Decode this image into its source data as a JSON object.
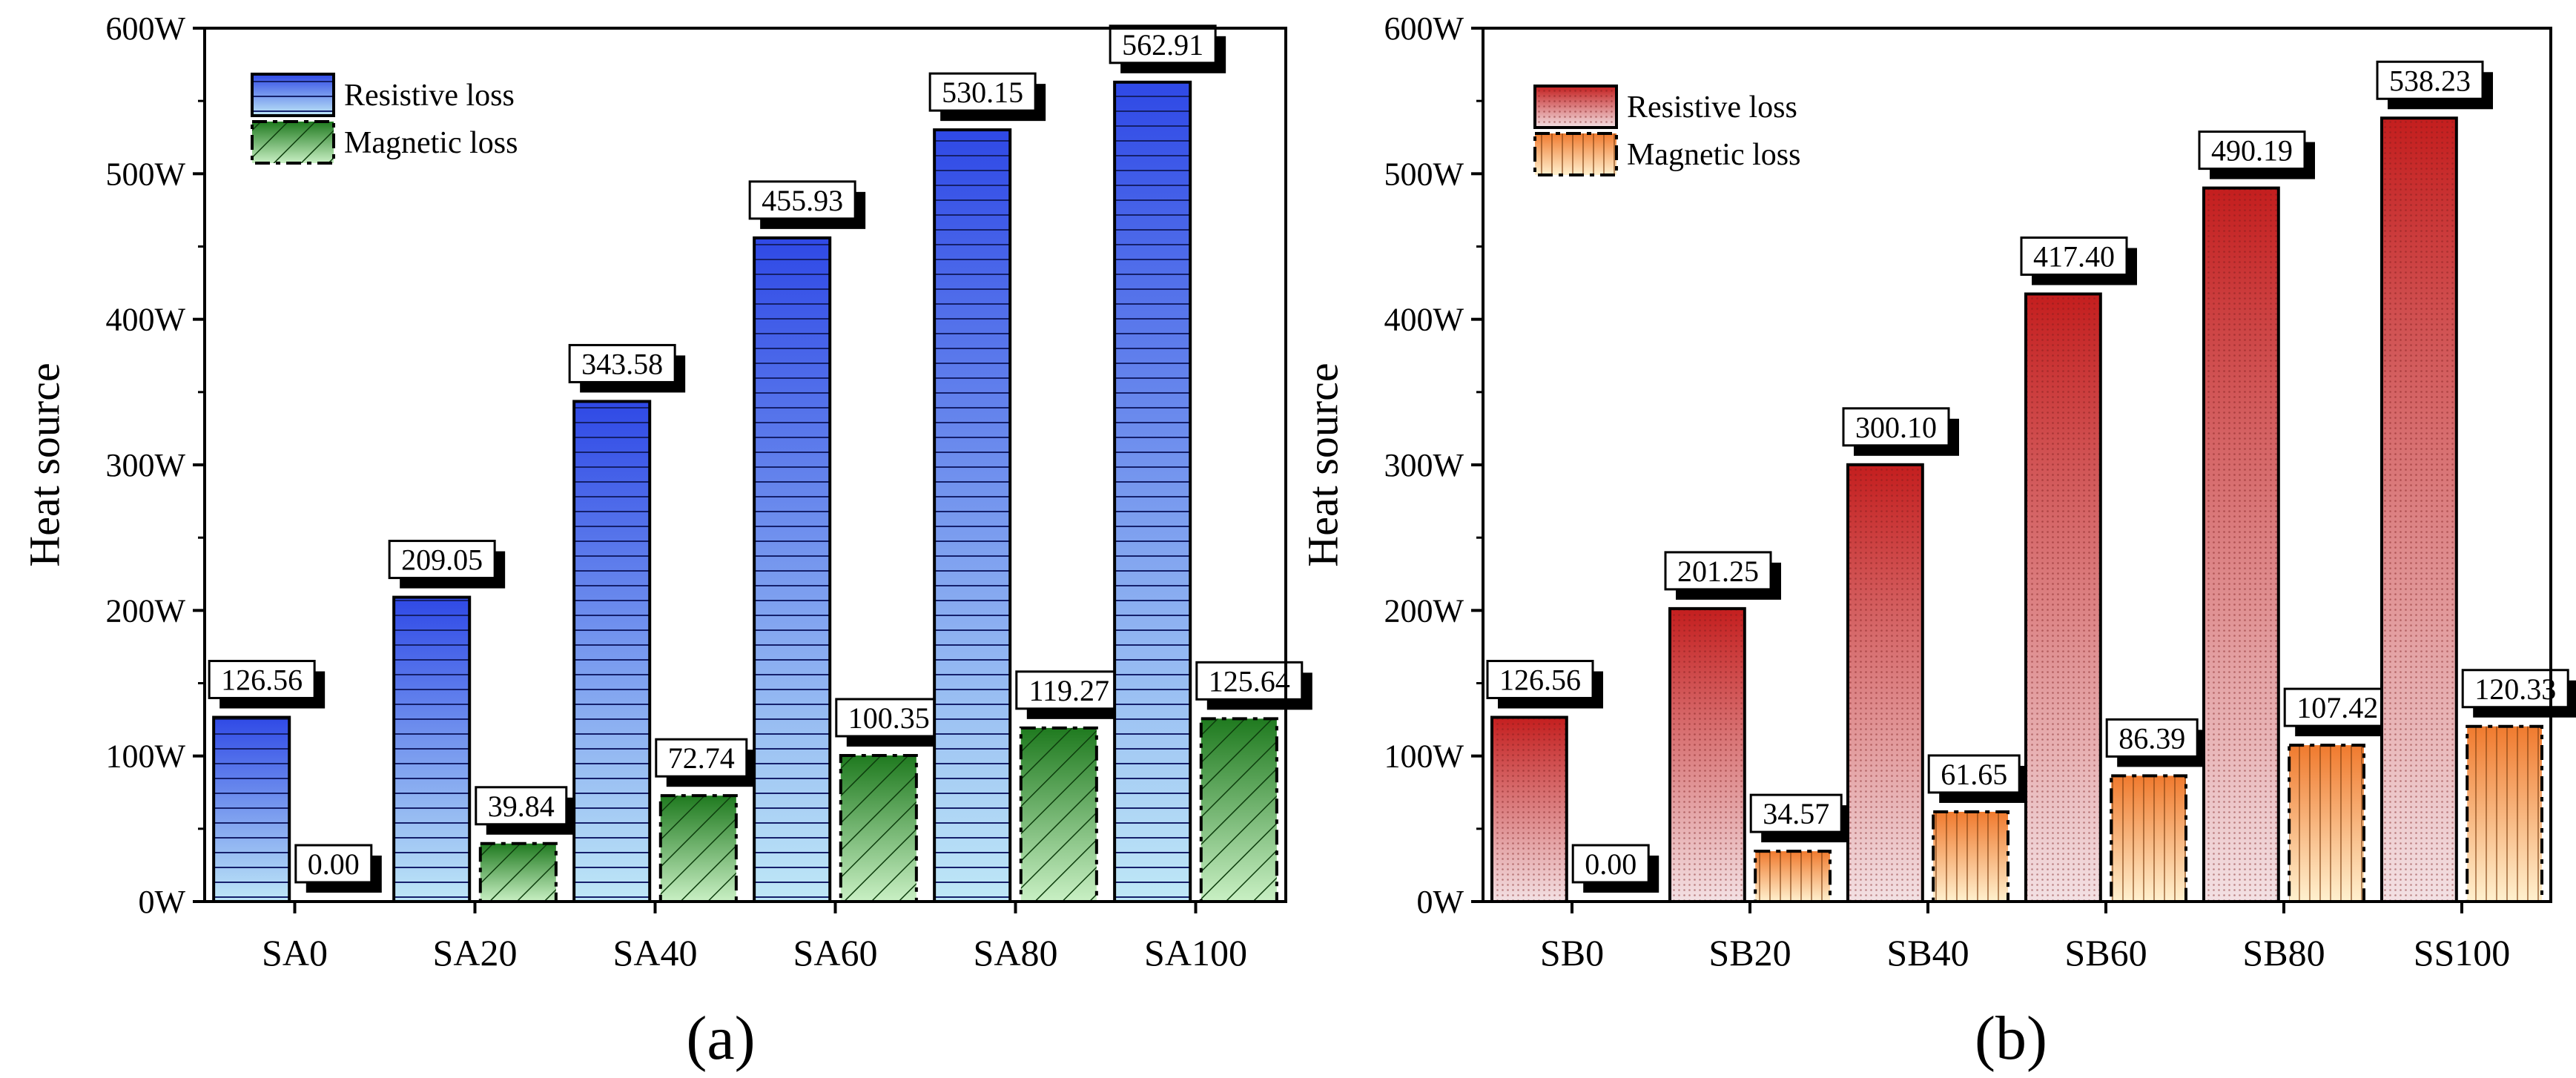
{
  "chart_data": [
    {
      "type": "bar",
      "panel_label": "(a)",
      "categories": [
        "SA0",
        "SA20",
        "SA40",
        "SA60",
        "SA80",
        "SA100"
      ],
      "series": [
        {
          "name": "Resistive loss",
          "values": [
            126.56,
            209.05,
            343.58,
            455.93,
            530.15,
            562.91
          ],
          "color_top": "#2f49e6",
          "color_bottom": "#bfe8f7",
          "pattern": "horizontal-lines"
        },
        {
          "name": "Magnetic loss",
          "values": [
            0.0,
            39.84,
            72.74,
            100.35,
            119.27,
            125.64
          ],
          "color_top": "#1f7a1f",
          "color_bottom": "#c9f0c4",
          "pattern": "diagonal-hatch"
        }
      ],
      "value_labels": [
        [
          "126.56",
          "209.05",
          "343.58",
          "455.93",
          "530.15",
          "562.91"
        ],
        [
          "0.00",
          "39.84",
          "72.74",
          "100.35",
          "119.27",
          "125.64"
        ]
      ],
      "ylabel": "Heat source",
      "yticks": [
        "0W",
        "100W",
        "200W",
        "300W",
        "400W",
        "500W",
        "600W"
      ],
      "ytick_values": [
        0,
        100,
        200,
        300,
        400,
        500,
        600
      ],
      "ylim": [
        0,
        600
      ],
      "grid": false,
      "legend_position": "top-left"
    },
    {
      "type": "bar",
      "panel_label": "(b)",
      "categories": [
        "SB0",
        "SB20",
        "SB40",
        "SB60",
        "SB80",
        "SS100"
      ],
      "series": [
        {
          "name": "Resistive loss",
          "values": [
            126.56,
            201.25,
            300.1,
            417.4,
            490.19,
            538.23
          ],
          "color_top": "#c41e1e",
          "color_bottom": "#f3e1e4",
          "pattern": "dots"
        },
        {
          "name": "Magnetic loss",
          "values": [
            0.0,
            34.57,
            61.65,
            86.39,
            107.42,
            120.33
          ],
          "color_top": "#f07a2e",
          "color_bottom": "#fff1cf",
          "pattern": "vertical-lines"
        }
      ],
      "value_labels": [
        [
          "126.56",
          "201.25",
          "300.10",
          "417.40",
          "490.19",
          "538.23"
        ],
        [
          "0.00",
          "34.57",
          "61.65",
          "86.39",
          "107.42",
          "120.33"
        ]
      ],
      "ylabel": "Heat source",
      "yticks": [
        "0W",
        "100W",
        "200W",
        "300W",
        "400W",
        "500W",
        "600W"
      ],
      "ytick_values": [
        0,
        100,
        200,
        300,
        400,
        500,
        600
      ],
      "ylim": [
        0,
        600
      ],
      "grid": false,
      "legend_position": "top-left"
    }
  ]
}
